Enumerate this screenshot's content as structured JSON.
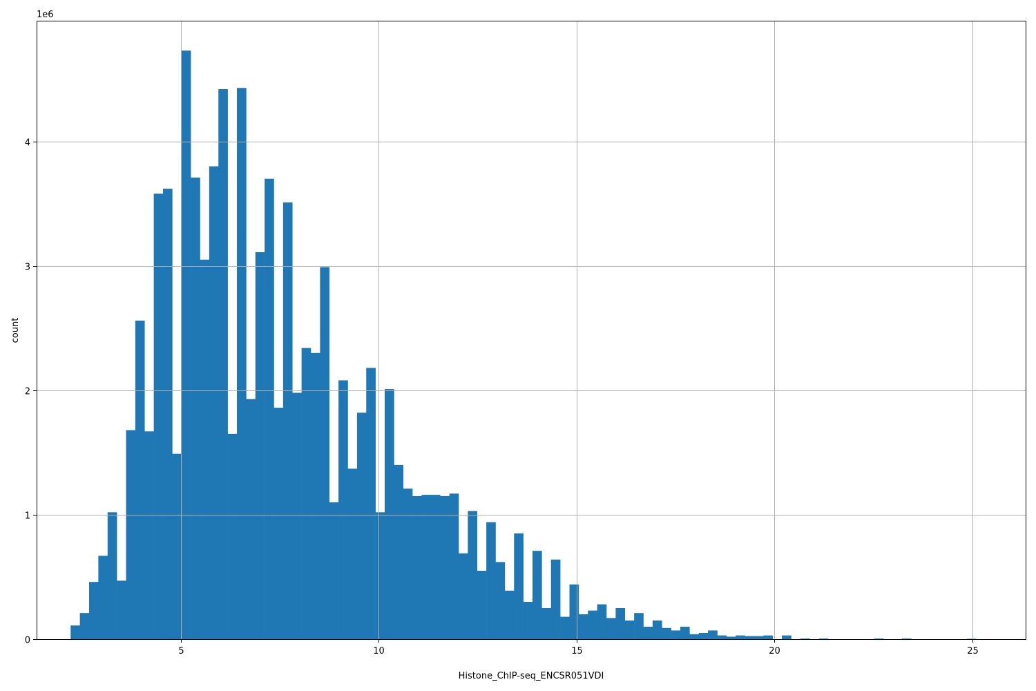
{
  "chart_data": {
    "type": "bar",
    "title": "",
    "xlabel": "Histone_ChIP-seq_ENCSR051VDI",
    "ylabel": "count",
    "y_multiplier_label": "1e6",
    "xlim": [
      1.35,
      26.35
    ],
    "ylim": [
      0,
      4.97
    ],
    "x_ticks": [
      5,
      10,
      15,
      20,
      25
    ],
    "y_ticks": [
      0,
      1,
      2,
      3,
      4
    ],
    "x_tick_labels": [
      "5",
      "10",
      "15",
      "20",
      "25"
    ],
    "y_tick_labels": [
      "0",
      "1",
      "2",
      "3",
      "4"
    ],
    "grid": true,
    "bar_color": "#1f77b4",
    "bin_start": 2.21,
    "bin_width": 0.2335,
    "values": [
      0.11,
      0.21,
      0.46,
      0.67,
      1.02,
      0.47,
      1.68,
      2.56,
      1.67,
      3.58,
      3.62,
      1.49,
      4.73,
      3.71,
      3.05,
      3.8,
      4.42,
      1.65,
      4.43,
      1.93,
      3.11,
      3.7,
      1.86,
      3.51,
      1.98,
      2.34,
      2.3,
      2.99,
      1.1,
      2.08,
      1.37,
      1.82,
      2.18,
      1.02,
      2.01,
      1.4,
      1.21,
      1.15,
      1.16,
      1.16,
      1.15,
      1.17,
      0.69,
      1.03,
      0.55,
      0.94,
      0.62,
      0.39,
      0.85,
      0.3,
      0.71,
      0.25,
      0.64,
      0.18,
      0.44,
      0.2,
      0.23,
      0.28,
      0.17,
      0.25,
      0.15,
      0.21,
      0.1,
      0.15,
      0.09,
      0.07,
      0.1,
      0.04,
      0.05,
      0.07,
      0.03,
      0.02,
      0.03,
      0.025,
      0.025,
      0.03,
      0.0,
      0.03,
      0.0,
      0.005,
      0.0,
      0.005,
      0.0,
      0.0,
      0.0,
      0.0,
      0.0,
      0.005,
      0.0,
      0.0,
      0.005,
      0.0,
      0.0,
      0.0,
      0.0,
      0.0,
      0.0,
      0.003,
      0.0,
      0.0
    ]
  }
}
